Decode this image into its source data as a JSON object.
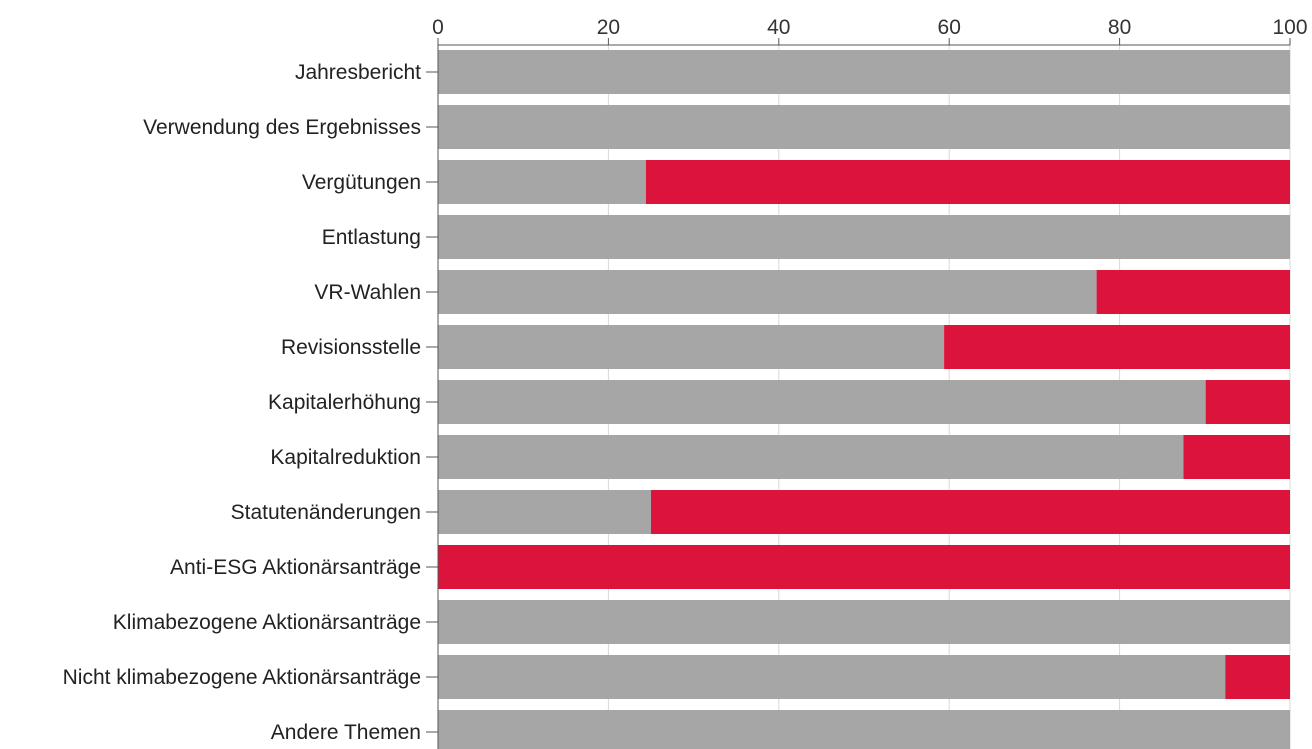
{
  "chart_data": {
    "type": "bar",
    "orientation": "horizontal",
    "stacked": true,
    "categories": [
      "Jahresbericht",
      "Verwendung des Ergebnisses",
      "Vergütungen",
      "Entlastung",
      "VR-Wahlen",
      "Revisionsstelle",
      "Kapitalerhöhung",
      "Kapitalreduktion",
      "Statutenänderungen",
      "Anti-ESG Aktionärsanträge",
      "Klimabezogene Aktionärsanträge",
      "Nicht klimabezogene Aktionärsanträge",
      "Andere Themen"
    ],
    "series": [
      {
        "color": "#a6a6a6",
        "values": [
          100,
          100,
          24.4,
          100,
          77.3,
          59.4,
          90.1,
          87.5,
          25,
          0,
          100,
          92.4,
          100
        ]
      },
      {
        "color": "#dc143c",
        "values": [
          0,
          0,
          75.6,
          0,
          22.7,
          40.6,
          9.9,
          12.5,
          75,
          100,
          0,
          7.6,
          0
        ]
      }
    ],
    "xlim": [
      0,
      100
    ],
    "xticks": [
      0,
      20,
      40,
      60,
      80,
      100
    ],
    "x_axis_position": "top",
    "grid": true,
    "title": "",
    "xlabel": "",
    "ylabel": ""
  }
}
